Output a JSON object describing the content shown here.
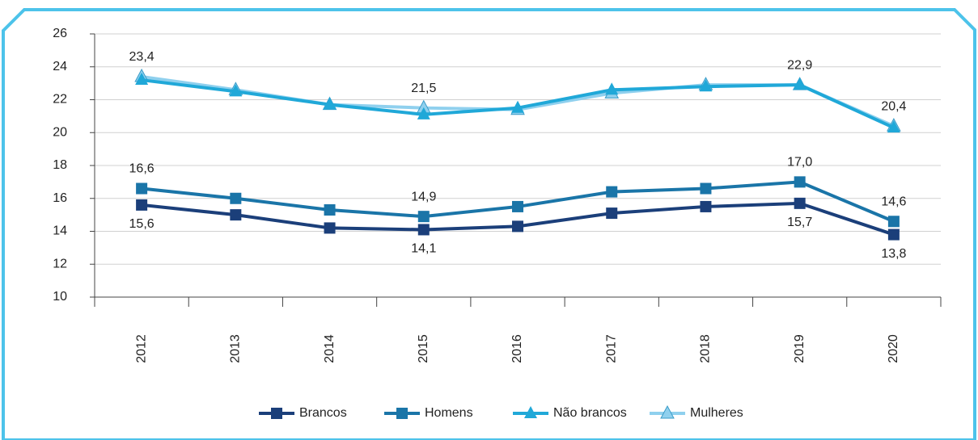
{
  "chart_data": {
    "type": "line",
    "categories": [
      "2012",
      "2013",
      "2014",
      "2015",
      "2016",
      "2017",
      "2018",
      "2019",
      "2020"
    ],
    "series": [
      {
        "name": "Brancos",
        "color": "#1b3f7a",
        "marker": "square",
        "values": [
          15.6,
          15.0,
          14.2,
          14.1,
          14.3,
          15.1,
          15.5,
          15.7,
          13.8
        ],
        "value_labels": [
          "15,6",
          null,
          null,
          "14,1",
          null,
          null,
          null,
          "15,7",
          "13,8"
        ]
      },
      {
        "name": "Homens",
        "color": "#1a75a8",
        "marker": "square",
        "values": [
          16.6,
          16.0,
          15.3,
          14.9,
          15.5,
          16.4,
          16.6,
          17.0,
          14.6
        ],
        "value_labels": [
          "16,6",
          null,
          null,
          "14,9",
          null,
          null,
          null,
          "17,0",
          "14,6"
        ]
      },
      {
        "name": "Não brancos",
        "color": "#20a8d8",
        "marker": "triangle",
        "values": [
          23.2,
          22.5,
          21.7,
          21.1,
          21.5,
          22.6,
          22.8,
          22.9,
          20.3
        ],
        "value_labels": [
          null,
          null,
          null,
          null,
          null,
          null,
          null,
          null,
          null
        ]
      },
      {
        "name": "Mulheres",
        "color": "#8fd0ee",
        "marker": "triangle-outline",
        "values": [
          23.4,
          22.6,
          21.7,
          21.5,
          21.4,
          22.4,
          22.9,
          22.9,
          20.4
        ],
        "value_labels": [
          "23,4",
          null,
          null,
          "21,5",
          null,
          null,
          null,
          "22,9",
          "20,4"
        ]
      }
    ],
    "ylim": [
      10,
      26
    ],
    "yticks": [
      10,
      12,
      14,
      16,
      18,
      20,
      22,
      24,
      26
    ],
    "grid": true,
    "legend": "bottom"
  }
}
